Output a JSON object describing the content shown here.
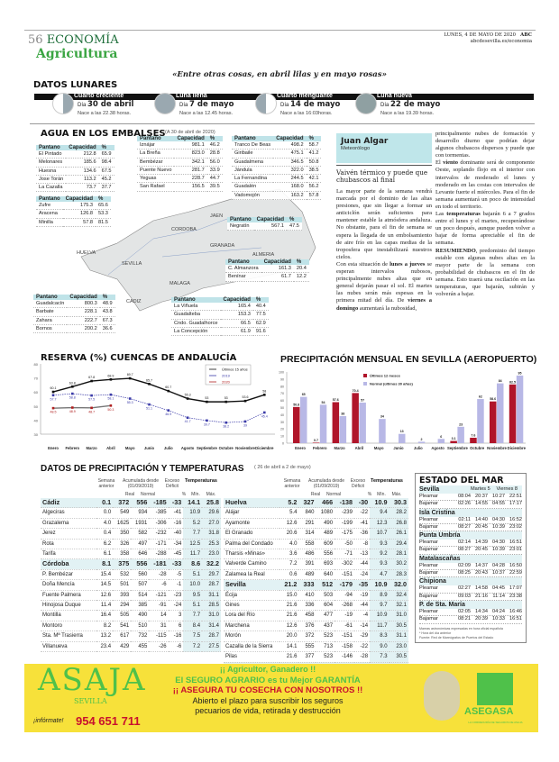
{
  "header": {
    "page": "56",
    "section": "ECONOMÍA",
    "subsection": "Agricultura",
    "date": "LUNES, 4 DE MAYO DE 2020",
    "site": "abcdesevilla.es/economia",
    "brand": "ABC",
    "quote": "«Entre otras cosas, en abril lilas y en mayo rosas»",
    "watermark": "ABC"
  },
  "lunares": {
    "title": "DATOS LUNARES",
    "phases": [
      {
        "name": "Cuarto creciente",
        "dia": "Día",
        "date": "30 de abril",
        "nace": "Nace a las 22.38 horas."
      },
      {
        "name": "Luna llena",
        "dia": "Día",
        "date": "7 de mayo",
        "nace": "Nace a las 12.45 horas."
      },
      {
        "name": "Cuarto menguante",
        "dia": "Día",
        "date": "14 de mayo",
        "nace": "Nace a las 16:03horas."
      },
      {
        "name": "Luna nueva",
        "dia": "Día",
        "date": "22 de mayo",
        "nace": "Nace a las 19.39 horas."
      }
    ]
  },
  "embalses": {
    "title": "AGUA EN LOS EMBALSES",
    "date": "(A 30 de abril de 2020)",
    "headers": [
      "Pantano",
      "Capacidad",
      "%"
    ],
    "cities": [
      "CORDOBA",
      "JAEN",
      "GRANADA",
      "ALMERIA",
      "HUELVA",
      "SEVILLA",
      "MALAGA",
      "CADIZ"
    ],
    "tables": [
      [
        [
          "El Pintado",
          "212.8",
          "65.9"
        ],
        [
          "Melonares",
          "185.6",
          "98.4"
        ],
        [
          "Huesna",
          "134.6",
          "67.5"
        ],
        [
          "Jose Torán",
          "113.2",
          "45.2"
        ],
        [
          "La Cazalla",
          "73.7",
          "37.7"
        ]
      ],
      [
        [
          "Iznájar",
          "981.1",
          "46.2"
        ],
        [
          "La Breña",
          "823.0",
          "28.8"
        ],
        [
          "Bembézar",
          "342.1",
          "56.0"
        ],
        [
          "Puente Nuevo",
          "281.7",
          "33.9"
        ],
        [
          "Yeguas",
          "228.7",
          "44.7"
        ],
        [
          "San Rafael",
          "156.5",
          "39.5"
        ]
      ],
      [
        [
          "Tranco De Beas",
          "498.2",
          "58.7"
        ],
        [
          "Giribaile",
          "475.1",
          "41.2"
        ],
        [
          "Guadalmena",
          "346.5",
          "50.8"
        ],
        [
          "Jándula",
          "322.0",
          "38.5"
        ],
        [
          "La Fernandina",
          "244.5",
          "42.1"
        ],
        [
          "Guadalén",
          "168.0",
          "56.2"
        ],
        [
          "Vadomojón",
          "163.2",
          "57.8"
        ]
      ],
      [
        [
          "Zufre",
          "175.3",
          "65.6"
        ],
        [
          "Aracena",
          "126.8",
          "53.3"
        ],
        [
          "Minilla",
          "57.8",
          "81.5"
        ]
      ],
      [
        [
          "Negratín",
          "567.1",
          "47.5"
        ]
      ],
      [
        [
          "C. Almanzora",
          "161.3",
          "20.4"
        ],
        [
          "Benínar",
          "61.7",
          "12.2"
        ]
      ],
      [
        [
          "Guadalcacín",
          "800.3",
          "48.9"
        ],
        [
          "Barbate",
          "228.1",
          "43.8"
        ],
        [
          "Zahara",
          "222.7",
          "67.3"
        ],
        [
          "Bornos",
          "200.2",
          "36.6"
        ]
      ],
      [
        [
          "La Viñuela",
          "165.4",
          "40.4"
        ],
        [
          "Guadalteba",
          "153.3",
          "77.5"
        ],
        [
          "Cndo. Guadalhorce",
          "66.5",
          "62.9"
        ],
        [
          "La Concepción",
          "61.9",
          "91.6"
        ]
      ]
    ]
  },
  "article": {
    "author": "Juan Algar",
    "role": "Meteorólogo",
    "headline": "Vaivén térmico y puede que chubascos al final",
    "col1": [
      "La mayor parte de la semana vendrá marcada por el dominio de las altas presiones, que sin llegar a formar un anticiclón serán suficientes para mantener estable la atmósfera andaluza. No obstante, para el fin de semana se espera la llegada de un embolsamiento de aire frío en las capas medias de la troposfera que inestabilizará nuestros cielos.",
      "Con esta situación de ",
      "lunes a jueves",
      " se esperan intervalos nubosos, principalmente nubes altas que en general dejarán pasar el sol. El martes las nubes serán más espesas en la primera mitad del día. De ",
      "viernes a domingo",
      " aumentará la nubosidad,"
    ],
    "col2": [
      "principalmente nubes de formación y desarrollo diurno que podrían dejar algunos chubascos dispersos y puede que con tormentas.",
      "El ",
      "viento",
      " dominante será de componente Oeste, soplando flojo en el interior con intervalos de moderado el lunes y moderado en las costas con intervalos de Levante fuerte el miércoles. Para el fin de semana aumentará un poco de intensidad en todo el territorio.",
      "Las ",
      "temperaturas",
      " bajarán 6 a 7 grados entre el lunes y el martes, recuperándose un poco después, aunque pueden volver a bajar de forma apreciable el fin de semana.",
      "RESUMIENDO",
      ", predominio del tiempo estable con algunas nubes altas en la mayor parte de la semana con probabilidad de chubascos en el fin de semana. Esto traerá una oscilación en las temperaturas, que bajarán, subirán y volverán a bajar."
    ]
  },
  "chart_data": [
    {
      "type": "line",
      "title": "RESERVA (%) CUENCAS DE ANDALUCÍA",
      "categories": [
        "Enero",
        "Febrero",
        "Marzo",
        "Abril",
        "Mayo",
        "Junio",
        "Julio",
        "Agosto",
        "Septiembre",
        "Octubre",
        "Noviembre",
        "Diciembre"
      ],
      "ylim": [
        30,
        80
      ],
      "yticks": [
        30,
        40,
        50,
        60,
        70,
        80
      ],
      "legend": "top-right",
      "series": [
        {
          "name": "Últimos 15 años",
          "color": "#111111",
          "values": [
            60.1,
            63.8,
            67.8,
            68.9,
            69.7,
            65.7,
            60.7,
            55.3,
            53.0,
            53.0,
            53.6,
            58.0
          ]
        },
        {
          "name": "2019",
          "color": "#3a3aa8",
          "values": [
            57.7,
            58.8,
            57.5,
            58.1,
            55.3,
            51.1,
            46.9,
            41.7,
            39.7,
            38.2,
            39.0,
            45.4
          ]
        },
        {
          "name": "2020",
          "color": "#b02020",
          "values": [
            48.5,
            48.9,
            48.7,
            50.3,
            null,
            null,
            null,
            null,
            null,
            null,
            null,
            null
          ]
        }
      ]
    },
    {
      "type": "bar",
      "title": "PRECIPITACIÓN MENSUAL EN SEVILLA (AEROPUERTO)",
      "categories": [
        "Enero",
        "Febrero",
        "Marzo",
        "Abril",
        "Mayo",
        "Junio",
        "Julio",
        "Agosto",
        "Septiembre",
        "Octubre",
        "Noviembre",
        "Diciembre"
      ],
      "ylim": [
        0,
        100
      ],
      "yticks": [
        0,
        10,
        20,
        30,
        40,
        50,
        60,
        70,
        80,
        90,
        100
      ],
      "legend": "top-center",
      "series": [
        {
          "name": "Últimos 12 meses",
          "color": "#b0152a",
          "values": [
            50.8,
            0.7,
            57.6,
            70.4,
            null,
            null,
            null,
            null,
            3.1,
            7.6,
            58.6,
            82.5
          ]
        },
        {
          "name": "Normal (últimos 30 años)",
          "color": "#b8b8e6",
          "values": [
            65.0,
            54.0,
            38.0,
            57.0,
            34.0,
            13.0,
            2.0,
            6.0,
            23.0,
            62.0,
            84.0,
            95.0
          ]
        }
      ]
    }
  ],
  "precip": {
    "title": "DATOS DE PRECIPITACIÓN Y TEMPERATURAS",
    "period": "( 26 de abril a 2 de mayo)",
    "headers": {
      "semana": "Semana anterior",
      "acum": "Acumulada desde (01/09/2019)",
      "real": "Real",
      "normal": "Normal",
      "exceso": "Exceso Déficit",
      "pct": "%",
      "temps": "Temperaturas",
      "min": "Mín.",
      "max": "Máx."
    },
    "left": [
      [
        "Cádiz",
        "0.1",
        "372",
        "556",
        "-185",
        "-33",
        "14.1",
        "25.8",
        1
      ],
      [
        "Algeciras",
        "0.0",
        "549",
        "934",
        "-385",
        "-41",
        "10.9",
        "29.6"
      ],
      [
        "Grazalema",
        "4.0",
        "1625",
        "1931",
        "-306",
        "-16",
        "5.2",
        "27.0"
      ],
      [
        "Jerez",
        "0.4",
        "350",
        "582",
        "-232",
        "-40",
        "7.7",
        "31.8"
      ],
      [
        "Rota",
        "6.2",
        "326",
        "497",
        "-171",
        "-34",
        "12.5",
        "25.3"
      ],
      [
        "Tarifa",
        "6.1",
        "358",
        "646",
        "-288",
        "-45",
        "11.7",
        "23.0"
      ],
      [
        "Córdoba",
        "8.1",
        "375",
        "556",
        "-181",
        "-33",
        "8.6",
        "32.2",
        1
      ],
      [
        "P. Bembézar",
        "15.4",
        "532",
        "560",
        "-28",
        "-5",
        "5.1",
        "29.7"
      ],
      [
        "Doña Mencía",
        "14.5",
        "501",
        "507",
        "-6",
        "-1",
        "10.0",
        "28.7"
      ],
      [
        "Fuente Palmera",
        "12.6",
        "393",
        "514",
        "-121",
        "-23",
        "9.5",
        "31.1"
      ],
      [
        "Hinojosa Duque",
        "11.4",
        "294",
        "385",
        "-91",
        "-24",
        "5.1",
        "28.5"
      ],
      [
        "Montilla",
        "16.4",
        "505",
        "490",
        "14",
        "3",
        "7.7",
        "31.0"
      ],
      [
        "Montoro",
        "8.2",
        "541",
        "510",
        "31",
        "6",
        "8.4",
        "31.4"
      ],
      [
        "Sta. Mª Trasierra",
        "13.2",
        "617",
        "732",
        "-115",
        "-16",
        "7.5",
        "28.7"
      ],
      [
        "Villanueva",
        "23.4",
        "429",
        "455",
        "-26",
        "-6",
        "7.2",
        "27.5"
      ]
    ],
    "right": [
      [
        "Huelva",
        "5.2",
        "327",
        "466",
        "-138",
        "-30",
        "10.9",
        "30.3",
        1
      ],
      [
        "Alájar",
        "5.4",
        "840",
        "1080",
        "-239",
        "-22",
        "9.4",
        "28.2"
      ],
      [
        "Ayamonte",
        "12.6",
        "291",
        "490",
        "-199",
        "-41",
        "12.3",
        "26.8"
      ],
      [
        "El Granado",
        "20.6",
        "314",
        "489",
        "-175",
        "-36",
        "10.7",
        "26.1"
      ],
      [
        "Palma del Condado",
        "4.0",
        "558",
        "609",
        "-50",
        "-8",
        "9.3",
        "29.4"
      ],
      [
        "Tharsis «Minas»",
        "3.6",
        "486",
        "556",
        "-71",
        "-13",
        "9.2",
        "28.1"
      ],
      [
        "Valverde Camino",
        "7.2",
        "391",
        "693",
        "-302",
        "-44",
        "9.3",
        "30.2"
      ],
      [
        "Zalamea la Real",
        "0.6",
        "489",
        "640",
        "-151",
        "-24",
        "4.7",
        "28.3"
      ],
      [
        "Sevilla",
        "21.2",
        "333",
        "512",
        "-179",
        "-35",
        "10.9",
        "32.0",
        1
      ],
      [
        "Écija",
        "15.0",
        "410",
        "503",
        "-94",
        "-19",
        "8.9",
        "32.4"
      ],
      [
        "Gines",
        "21.6",
        "336",
        "604",
        "-268",
        "-44",
        "9.7",
        "32.1"
      ],
      [
        "Lora del Río",
        "21.6",
        "458",
        "477",
        "-19",
        "-4",
        "10.9",
        "31.0"
      ],
      [
        "Marchena",
        "12.6",
        "376",
        "437",
        "-61",
        "-14",
        "11.7",
        "30.5"
      ],
      [
        "Morón",
        "20.0",
        "372",
        "523",
        "-151",
        "-29",
        "8.3",
        "31.1"
      ],
      [
        "Cazalla de la Sierra",
        "14.1",
        "555",
        "713",
        "-158",
        "-22",
        "9.0",
        "23.0"
      ],
      [
        "Pilas",
        "21.6",
        "377",
        "523",
        "-146",
        "-28",
        "7.3",
        "30.5"
      ],
      [
        "Ceuta",
        "0.0",
        "503",
        "527",
        "-24",
        "-5",
        "13.6",
        "27.8",
        1
      ]
    ]
  },
  "mar": {
    "title": "ESTADO DEL MAR",
    "day1": "Martes 5",
    "day2": "Viernes 8",
    "pleamar": "Pleamar",
    "bajamar": "Bajamar",
    "ports": [
      {
        "name": "Sevilla",
        "p": [
          "08:04",
          "20:37",
          "10:27",
          "22:51"
        ],
        "b": [
          "02:26",
          "14:55",
          "04:55",
          "17:17"
        ]
      },
      {
        "name": "Isla Cristina",
        "p": [
          "02:11",
          "14:40",
          "04:30",
          "16:52"
        ],
        "b": [
          "08:27",
          "20:45",
          "10:39",
          "23:02"
        ]
      },
      {
        "name": "Punta Umbría",
        "p": [
          "02:14",
          "14:39",
          "04:30",
          "16:51"
        ],
        "b": [
          "08:27",
          "20:45",
          "10:39",
          "23:01"
        ]
      },
      {
        "name": "Matalascañas",
        "p": [
          "02:09",
          "14:37",
          "04:28",
          "16:50"
        ],
        "b": [
          "08:25",
          "20:43",
          "10:37",
          "22:59"
        ]
      },
      {
        "name": "Chipiona",
        "p": [
          "02:27",
          "14:58",
          "04:45",
          "17:07"
        ],
        "b": [
          "09:03",
          "21:16",
          "11:14",
          "23:38"
        ]
      },
      {
        "name": "P. de Sta. María",
        "p": [
          "02:05",
          "14:34",
          "04:24",
          "16:46"
        ],
        "b": [
          "08:21",
          "20:39",
          "10:33",
          "16:51"
        ]
      }
    ],
    "notes": [
      "Mareas astronómicas expresadas en hora oficial española",
      "* Hora del día anterior",
      "Fuente: Red de Mareógrafos de Puertos del Estado"
    ]
  },
  "ad": {
    "logo": "ASAJA",
    "logo_sub": "SEVILLA",
    "informate": "¡infórmate!",
    "phone": "954 651 711",
    "line1": "¡¡ Agricultor, Ganadero !!",
    "line2": "El SEGURO AGRARIO es tu Mejor GARANTÍA",
    "line3": "¡¡ ASEGURA TU COSECHA CON NOSOTROS !!",
    "line4": "Abierto el plazo para suscribir los seguros",
    "line5": "pecuarios de vida, retirada y destrucción",
    "brand2": "ASEGASA",
    "brand2_sub": "LA CORREDURÍA DE SEGUROS DE ASAJA"
  }
}
